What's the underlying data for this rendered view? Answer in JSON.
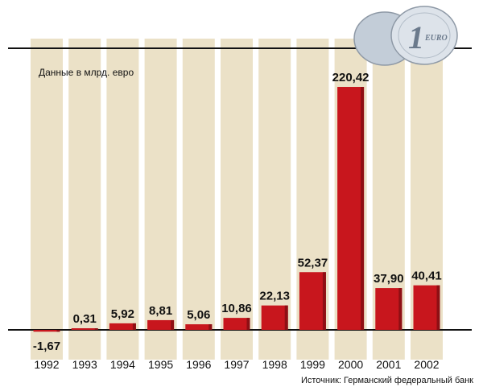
{
  "chart_data": {
    "type": "bar",
    "subtitle": "Данные в млрд. евро",
    "categories": [
      "1992",
      "1993",
      "1994",
      "1995",
      "1996",
      "1997",
      "1998",
      "1999",
      "2000",
      "2001",
      "2002"
    ],
    "values": [
      -1.67,
      0.31,
      5.92,
      8.81,
      5.06,
      10.86,
      22.13,
      52.37,
      220.42,
      37.9,
      40.41
    ],
    "value_labels": [
      "-1,67",
      "0,31",
      "5,92",
      "8,81",
      "5,06",
      "10,86",
      "22,13",
      "52,37",
      "220,42",
      "37,90",
      "40,41"
    ],
    "ylim": [
      -5,
      280
    ],
    "grid": false,
    "legend": "none",
    "source": "Источник: Германский федеральный банк",
    "colors": {
      "bar": "#c8161d",
      "bar_shade": "#8e0f14",
      "column_bg": "#ebe1c7",
      "axis": "#111111"
    }
  },
  "decoration": {
    "coin_text": "1",
    "coin_subtext": "EURO",
    "icon": "euro-coin-icon"
  }
}
